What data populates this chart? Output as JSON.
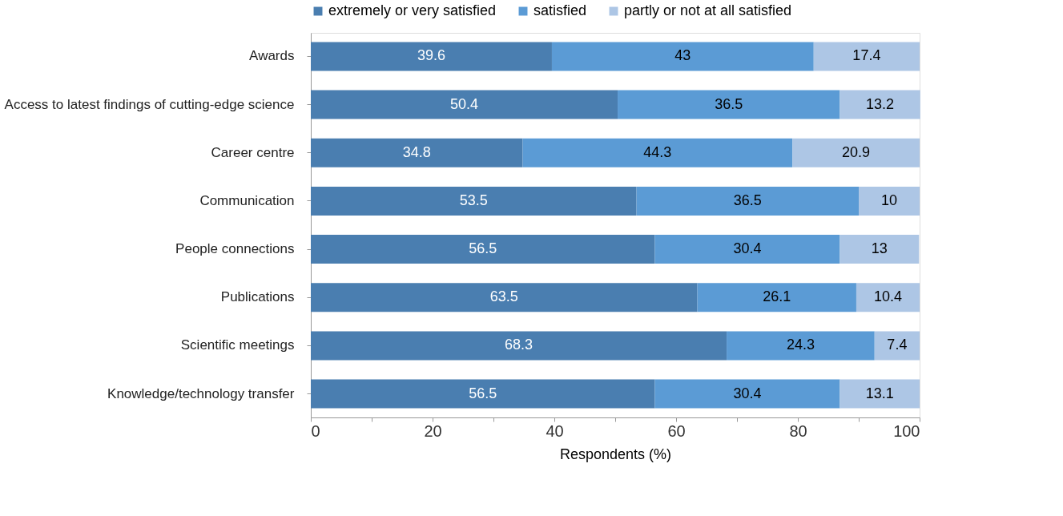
{
  "chart_data": {
    "type": "bar",
    "orientation": "horizontal",
    "stacked": true,
    "data_labels": true,
    "legend": "top",
    "grid": false,
    "xlabel": "Respondents (%)",
    "categories": [
      "Awards",
      "Access to latest findings of cutting-edge science",
      "Career centre",
      "Communication",
      "People connections",
      "Publications",
      "Scientific meetings",
      "Knowledge/technology transfer"
    ],
    "series": [
      {
        "name": "extremely or very satisfied",
        "color": "#4a7eb0",
        "values": [
          39.6,
          50.4,
          34.8,
          53.5,
          56.5,
          63.5,
          68.3,
          56.5
        ]
      },
      {
        "name": "satisfied",
        "color": "#5b9bd5",
        "values": [
          43,
          36.5,
          44.3,
          36.5,
          30.4,
          26.1,
          24.3,
          30.4
        ]
      },
      {
        "name": "partly or not at all satisfied",
        "color": "#adc6e5",
        "values": [
          17.4,
          13.2,
          20.9,
          10,
          13,
          10.4,
          7.4,
          13.1
        ]
      }
    ],
    "xlim": [
      0,
      100
    ],
    "xticks": [
      0,
      {
        "value": 10,
        "label": null
      },
      20,
      {
        "value": 30,
        "label": null
      },
      40,
      {
        "value": 50,
        "label": null
      },
      60,
      {
        "value": 70,
        "label": null
      },
      80,
      {
        "value": 90,
        "label": null
      },
      100
    ]
  }
}
